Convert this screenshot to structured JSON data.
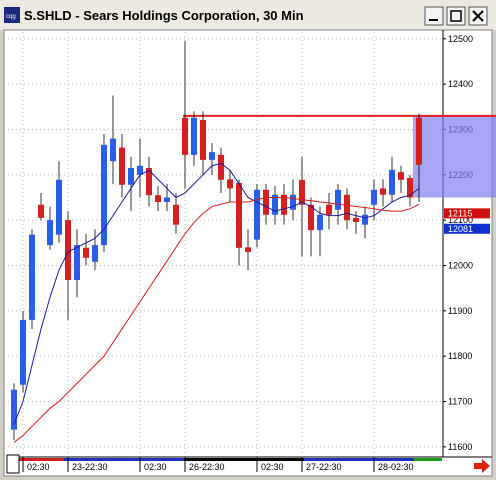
{
  "chart_data": {
    "type": "candlestick",
    "title": "S.SHLD - Sears Holdings Corporation, 30 Min",
    "categories": [
      null,
      "02:30",
      null,
      null,
      null,
      null,
      "23-22:30",
      null,
      null,
      null,
      null,
      null,
      null,
      null,
      "02:30",
      null,
      null,
      null,
      null,
      "26-22:30",
      null,
      null,
      null,
      null,
      null,
      null,
      null,
      "02:30",
      null,
      null,
      null,
      null,
      "27-22:30",
      null,
      null,
      null,
      null,
      null,
      null,
      null,
      "28-02:30",
      null,
      null,
      null,
      null,
      null
    ],
    "open": [
      11638,
      11737,
      11880,
      12134,
      12045,
      12068,
      12100,
      11968,
      12039,
      12008,
      12045,
      12230,
      12260,
      12178,
      12200,
      12215,
      12155,
      12140,
      12134,
      12326,
      12244,
      12321,
      12233,
      12244,
      12190,
      12182,
      12040,
      12057,
      12167,
      12112,
      12156,
      12123,
      12189,
      12134,
      12078,
      12134,
      12123,
      12156,
      12105,
      12090,
      12134,
      12170,
      12156,
      12206,
      12193,
      12326
    ],
    "high": [
      11740,
      11900,
      12080,
      12160,
      12130,
      12230,
      12120,
      12080,
      12070,
      12080,
      12290,
      12375,
      12290,
      12240,
      12280,
      12240,
      12175,
      12180,
      12160,
      12495,
      12340,
      12340,
      12270,
      12260,
      12210,
      12190,
      12080,
      12180,
      12180,
      12175,
      12180,
      12190,
      12240,
      12150,
      12130,
      12160,
      12180,
      12170,
      12120,
      12130,
      12190,
      12190,
      12240,
      12220,
      12200,
      12335
    ],
    "low": [
      11615,
      11720,
      11860,
      12100,
      12035,
      12050,
      11880,
      11930,
      12000,
      11990,
      12030,
      12180,
      12150,
      12120,
      12150,
      12130,
      12120,
      12120,
      12070,
      12170,
      12220,
      12200,
      12200,
      12160,
      12140,
      12000,
      11990,
      12040,
      12090,
      12090,
      12090,
      12100,
      12020,
      12020,
      12020,
      12080,
      12090,
      12080,
      12070,
      12060,
      12100,
      12130,
      12140,
      12160,
      12130,
      12140
    ],
    "close": [
      11726,
      11880,
      12068,
      12105,
      12100,
      12189,
      11968,
      12045,
      12017,
      12045,
      12266,
      12280,
      12178,
      12215,
      12220,
      12155,
      12140,
      12150,
      12090,
      12244,
      12326,
      12233,
      12250,
      12189,
      12170,
      12039,
      12030,
      12167,
      12112,
      12156,
      12112,
      12156,
      12134,
      12078,
      12112,
      12112,
      12167,
      12100,
      12096,
      12112,
      12167,
      12156,
      12211,
      12189,
      12150,
      12222
    ],
    "up_color": "#2a5ee8",
    "down_color": "#d42020",
    "moving_averages": [
      {
        "color": "#1a1aa0",
        "values": [
          11650,
          11700,
          11780,
          11860,
          11930,
          11990,
          12030,
          12040,
          12050,
          12060,
          12080,
          12110,
          12140,
          12170,
          12200,
          12210,
          12190,
          12170,
          12150,
          12160,
          12180,
          12200,
          12220,
          12225,
          12210,
          12180,
          12150,
          12140,
          12130,
          12120,
          12125,
          12130,
          12140,
          12130,
          12115,
          12110,
          12110,
          12115,
          12110,
          12105,
          12110,
          12125,
          12140,
          12150,
          12155,
          12170
        ]
      },
      {
        "color": "#d81818",
        "values": [
          11610,
          11625,
          11645,
          11665,
          11685,
          11700,
          11720,
          11740,
          11760,
          11780,
          11800,
          11830,
          11860,
          11890,
          11920,
          11950,
          11980,
          12010,
          12040,
          12070,
          12095,
          12115,
          12130,
          12135,
          12140,
          12140,
          12140,
          12145,
          12150,
          12150,
          12150,
          12148,
          12145,
          12143,
          12140,
          12138,
          12135,
          12133,
          12130,
          12128,
          12125,
          12122,
          12120,
          12120,
          12125,
          12135
        ]
      }
    ],
    "highlight_zone": {
      "low": 12150,
      "high": 12330,
      "color": "#8080f0"
    },
    "price_labels": [
      {
        "value": 12115,
        "color": "#d01010"
      },
      {
        "value": 12081,
        "color": "#1030d0"
      }
    ],
    "ylim": [
      11582,
      12515
    ],
    "yticks": [
      11600,
      11700,
      11800,
      11900,
      12000,
      12100,
      12200,
      12300,
      12400,
      12500
    ],
    "grid": true
  }
}
